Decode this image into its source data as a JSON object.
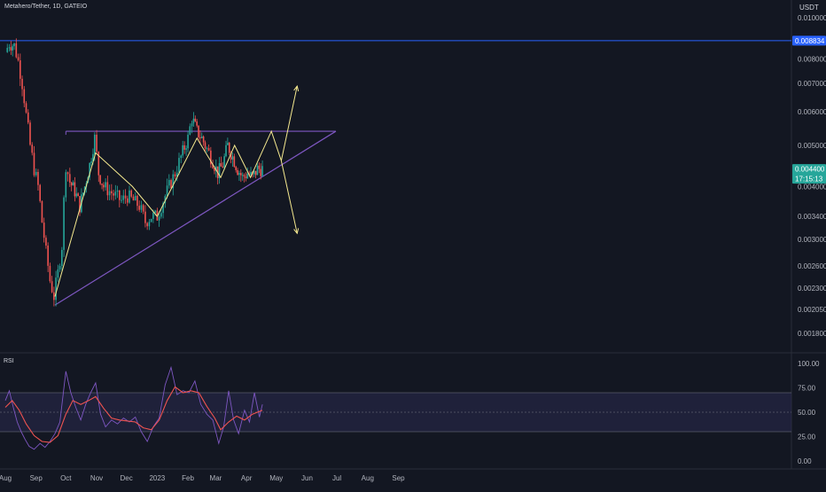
{
  "symbol_title": "Metahero/Tether, 1D, GATEIO",
  "price_unit": "USDT",
  "rsi_title": "RSI",
  "colors": {
    "background": "#131722",
    "up": "#26a69a",
    "down": "#ef5350",
    "resistance": "#2962ff",
    "triangle": "#7e57c2",
    "projection": "#f5e98f",
    "rsi_line": "#7e57c2",
    "rsi_ma": "#ef5350",
    "rsi_band": "#2a2a4f"
  },
  "chart_data": [
    {
      "type": "candlestick",
      "title": "Metahero/Tether, 1D, GATEIO",
      "ylabel": "USDT",
      "ylim": [
        0.0017,
        0.0105
      ],
      "yscale": "log",
      "y_ticks": [
        "0.010000",
        "0.008000",
        "0.007000",
        "0.006000",
        "0.005000",
        "0.004000",
        "0.003400",
        "0.003000",
        "0.002600",
        "0.002300",
        "0.002050",
        "0.001800"
      ],
      "x_ticks": [
        "Aug",
        "Sep",
        "Oct",
        "Nov",
        "Dec",
        "2023",
        "Feb",
        "Mar",
        "Apr",
        "May",
        "Jun",
        "Jul",
        "Aug",
        "Sep"
      ],
      "price_labels": [
        {
          "value": 0.008834,
          "text": "0.008834",
          "color": "#2962ff"
        },
        {
          "value": 0.0044,
          "text": "0.004400",
          "sub": "17:15:13",
          "color": "#26a69a"
        }
      ],
      "close_path": [
        [
          "Aug 01",
          0.0083
        ],
        [
          "Aug 05",
          0.0087
        ],
        [
          "Aug 10",
          0.0086
        ],
        [
          "Aug 14",
          0.0079
        ],
        [
          "Aug 18",
          0.007
        ],
        [
          "Aug 22",
          0.0059
        ],
        [
          "Aug 26",
          0.005
        ],
        [
          "Aug 30",
          0.0044
        ],
        [
          "Sep 03",
          0.004
        ],
        [
          "Sep 07",
          0.0033
        ],
        [
          "Sep 11",
          0.0028
        ],
        [
          "Sep 15",
          0.0024
        ],
        [
          "Sep 19",
          0.0022
        ],
        [
          "Sep 23",
          0.0025
        ],
        [
          "Sep 27",
          0.0029
        ],
        [
          "Oct 01",
          0.0045
        ],
        [
          "Oct 05",
          0.0041
        ],
        [
          "Oct 10",
          0.0039
        ],
        [
          "Oct 15",
          0.0036
        ],
        [
          "Oct 20",
          0.004
        ],
        [
          "Oct 25",
          0.0045
        ],
        [
          "Oct 30",
          0.0052
        ],
        [
          "Nov 03",
          0.0043
        ],
        [
          "Nov 08",
          0.004
        ],
        [
          "Nov 14",
          0.0039
        ],
        [
          "Nov 20",
          0.0038
        ],
        [
          "Nov 26",
          0.0037
        ],
        [
          "Dec 02",
          0.0038
        ],
        [
          "Dec 08",
          0.0037
        ],
        [
          "Dec 14",
          0.0036
        ],
        [
          "Dec 20",
          0.0033
        ],
        [
          "Dec 26",
          0.0034
        ],
        [
          "Jan 01",
          0.0034
        ],
        [
          "Jan 07",
          0.0037
        ],
        [
          "Jan 13",
          0.004
        ],
        [
          "Jan 19",
          0.0043
        ],
        [
          "Jan 25",
          0.0047
        ],
        [
          "Feb 01",
          0.0052
        ],
        [
          "Feb 05",
          0.0058
        ],
        [
          "Feb 10",
          0.0054
        ],
        [
          "Feb 15",
          0.0052
        ],
        [
          "Feb 20",
          0.0049
        ],
        [
          "Feb 26",
          0.0046
        ],
        [
          "Mar 03",
          0.0043
        ],
        [
          "Mar 08",
          0.0045
        ],
        [
          "Mar 13",
          0.005
        ],
        [
          "Mar 18",
          0.0047
        ],
        [
          "Mar 23",
          0.0044
        ],
        [
          "Mar 28",
          0.0042
        ],
        [
          "Apr 02",
          0.0043
        ],
        [
          "Apr 07",
          0.0042
        ],
        [
          "Apr 12",
          0.0044
        ],
        [
          "Apr 17",
          0.0044
        ]
      ],
      "lines": {
        "resistance": {
          "y": 0.008834
        },
        "triangle_top": {
          "from": [
            "Oct 01",
            0.0054
          ],
          "to": [
            "Jun 30",
            0.0054
          ]
        },
        "triangle_bottom": {
          "from": [
            "Sep 20",
            0.0021
          ],
          "to": [
            "Jun 30",
            0.0054
          ]
        }
      },
      "projection_path": [
        [
          "Sep 20",
          0.0022
        ],
        [
          "Oct 31",
          0.0048
        ],
        [
          "Dec 07",
          0.004
        ],
        [
          "Jan 01",
          0.0034
        ],
        [
          "Feb 10",
          0.0052
        ],
        [
          "Mar 06",
          0.0042
        ],
        [
          "Mar 20",
          0.005
        ],
        [
          "Apr 05",
          0.0042
        ],
        [
          "Apr 26",
          0.0054
        ],
        [
          "May 06",
          0.0046
        ]
      ],
      "scenario_arrows": [
        {
          "from": [
            "May 06",
            0.0046
          ],
          "to": [
            "May 22",
            0.0069
          ]
        },
        {
          "from": [
            "May 06",
            0.0046
          ],
          "to": [
            "May 22",
            0.0031
          ]
        }
      ]
    },
    {
      "type": "line",
      "title": "RSI",
      "ylim": [
        0,
        100
      ],
      "y_ticks": [
        "100.00",
        "75.00",
        "50.00",
        "25.00",
        "0.00"
      ],
      "band": [
        30,
        70
      ],
      "midline": 50,
      "series": [
        {
          "key": "rsi",
          "values": [
            [
              "Aug 01",
              62
            ],
            [
              "Aug 05",
              72
            ],
            [
              "Aug 09",
              55
            ],
            [
              "Aug 13",
              40
            ],
            [
              "Aug 17",
              30
            ],
            [
              "Aug 21",
              22
            ],
            [
              "Aug 25",
              15
            ],
            [
              "Aug 30",
              12
            ],
            [
              "Sep 05",
              18
            ],
            [
              "Sep 10",
              14
            ],
            [
              "Sep 15",
              20
            ],
            [
              "Sep 20",
              28
            ],
            [
              "Sep 25",
              40
            ],
            [
              "Oct 01",
              92
            ],
            [
              "Oct 06",
              70
            ],
            [
              "Oct 11",
              55
            ],
            [
              "Oct 16",
              42
            ],
            [
              "Oct 21",
              58
            ],
            [
              "Oct 26",
              70
            ],
            [
              "Oct 31",
              80
            ],
            [
              "Nov 05",
              48
            ],
            [
              "Nov 10",
              35
            ],
            [
              "Nov 16",
              42
            ],
            [
              "Nov 22",
              38
            ],
            [
              "Nov 28",
              44
            ],
            [
              "Dec 04",
              40
            ],
            [
              "Dec 10",
              45
            ],
            [
              "Dec 16",
              30
            ],
            [
              "Dec 22",
              20
            ],
            [
              "Dec 28",
              35
            ],
            [
              "Jan 03",
              44
            ],
            [
              "Jan 09",
              78
            ],
            [
              "Jan 15",
              96
            ],
            [
              "Jan 21",
              68
            ],
            [
              "Jan 27",
              72
            ],
            [
              "Feb 02",
              70
            ],
            [
              "Feb 08",
              82
            ],
            [
              "Feb 14",
              58
            ],
            [
              "Feb 20",
              48
            ],
            [
              "Feb 26",
              42
            ],
            [
              "Mar 04",
              18
            ],
            [
              "Mar 09",
              35
            ],
            [
              "Mar 14",
              72
            ],
            [
              "Mar 19",
              42
            ],
            [
              "Mar 24",
              28
            ],
            [
              "Mar 30",
              52
            ],
            [
              "Apr 04",
              40
            ],
            [
              "Apr 09",
              70
            ],
            [
              "Apr 14",
              45
            ],
            [
              "Apr 17",
              58
            ]
          ]
        },
        {
          "key": "rsi_ma",
          "values": [
            [
              "Aug 01",
              55
            ],
            [
              "Aug 08",
              62
            ],
            [
              "Aug 15",
              52
            ],
            [
              "Aug 22",
              38
            ],
            [
              "Aug 30",
              26
            ],
            [
              "Sep 07",
              20
            ],
            [
              "Sep 15",
              19
            ],
            [
              "Sep 23",
              26
            ],
            [
              "Oct 01",
              48
            ],
            [
              "Oct 08",
              62
            ],
            [
              "Oct 16",
              58
            ],
            [
              "Oct 24",
              62
            ],
            [
              "Oct 31",
              66
            ],
            [
              "Nov 08",
              54
            ],
            [
              "Nov 16",
              44
            ],
            [
              "Nov 24",
              42
            ],
            [
              "Dec 02",
              41
            ],
            [
              "Dec 10",
              40
            ],
            [
              "Dec 18",
              34
            ],
            [
              "Dec 26",
              32
            ],
            [
              "Jan 03",
              42
            ],
            [
              "Jan 11",
              62
            ],
            [
              "Jan 19",
              76
            ],
            [
              "Jan 27",
              70
            ],
            [
              "Feb 04",
              72
            ],
            [
              "Feb 12",
              70
            ],
            [
              "Feb 20",
              56
            ],
            [
              "Feb 28",
              44
            ],
            [
              "Mar 06",
              32
            ],
            [
              "Mar 14",
              40
            ],
            [
              "Mar 22",
              46
            ],
            [
              "Mar 30",
              42
            ],
            [
              "Apr 07",
              48
            ],
            [
              "Apr 17",
              52
            ]
          ]
        }
      ]
    }
  ]
}
